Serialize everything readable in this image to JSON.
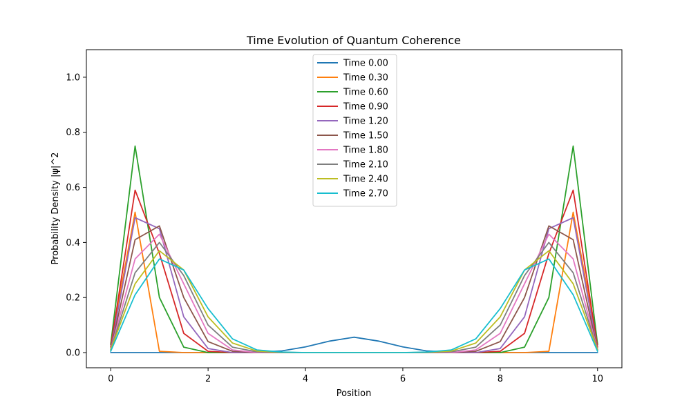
{
  "chart_data": {
    "type": "line",
    "title": "Time Evolution of Quantum Coherence",
    "xlabel": "Position",
    "ylabel": "Probability Density |ψ|^2",
    "xlim": [
      -0.5,
      10.5
    ],
    "ylim": [
      -0.055,
      1.1
    ],
    "xticks": [
      0,
      2,
      4,
      6,
      8,
      10
    ],
    "yticks": [
      0.0,
      0.2,
      0.4,
      0.6,
      0.8,
      1.0
    ],
    "xtick_labels": [
      "0",
      "2",
      "4",
      "6",
      "8",
      "10"
    ],
    "ytick_labels": [
      "0.0",
      "0.2",
      "0.4",
      "0.6",
      "0.8",
      "1.0"
    ],
    "grid": false,
    "legend_position": "top-center",
    "x": [
      0.0,
      0.5,
      1.0,
      1.5,
      2.0,
      2.5,
      3.0,
      3.5,
      4.0,
      4.5,
      5.0,
      5.5,
      6.0,
      6.5,
      7.0,
      7.5,
      8.0,
      8.5,
      9.0,
      9.5,
      10.0
    ],
    "series": [
      {
        "name": "Time 0.00",
        "color": "#1f77b4",
        "values": [
          0.0,
          0.0,
          0.0,
          0.0,
          0.0,
          0.0,
          0.002,
          0.006,
          0.021,
          0.042,
          0.056,
          0.042,
          0.021,
          0.006,
          0.002,
          0.0,
          0.0,
          0.0,
          0.0,
          0.0,
          0.0
        ]
      },
      {
        "name": "Time 0.30",
        "color": "#ff7f0e",
        "values": [
          0.03,
          0.51,
          0.005,
          0.0,
          0.0,
          0.0,
          0.0,
          0.0,
          0.0,
          0.0,
          0.0,
          0.0,
          0.0,
          0.0,
          0.0,
          0.0,
          0.0,
          0.0,
          0.005,
          0.51,
          0.03
        ]
      },
      {
        "name": "Time 0.60",
        "color": "#2ca02c",
        "values": [
          0.03,
          0.75,
          0.2,
          0.02,
          0.0,
          0.0,
          0.0,
          0.0,
          0.0,
          0.0,
          0.0,
          0.0,
          0.0,
          0.0,
          0.0,
          0.0,
          0.0,
          0.02,
          0.2,
          0.75,
          0.03
        ]
      },
      {
        "name": "Time 0.90",
        "color": "#d62728",
        "values": [
          0.02,
          0.59,
          0.36,
          0.07,
          0.005,
          0.0,
          0.0,
          0.0,
          0.0,
          0.0,
          0.0,
          0.0,
          0.0,
          0.0,
          0.0,
          0.0,
          0.005,
          0.07,
          0.36,
          0.59,
          0.02
        ]
      },
      {
        "name": "Time 1.20",
        "color": "#9467bd",
        "values": [
          0.01,
          0.49,
          0.45,
          0.13,
          0.015,
          0.0,
          0.0,
          0.0,
          0.0,
          0.0,
          0.0,
          0.0,
          0.0,
          0.0,
          0.0,
          0.0,
          0.015,
          0.13,
          0.45,
          0.49,
          0.01
        ]
      },
      {
        "name": "Time 1.50",
        "color": "#8c564b",
        "values": [
          0.01,
          0.41,
          0.46,
          0.2,
          0.04,
          0.005,
          0.0,
          0.0,
          0.0,
          0.0,
          0.0,
          0.0,
          0.0,
          0.0,
          0.0,
          0.005,
          0.04,
          0.2,
          0.46,
          0.41,
          0.01
        ]
      },
      {
        "name": "Time 1.80",
        "color": "#e377c2",
        "values": [
          0.01,
          0.34,
          0.43,
          0.25,
          0.07,
          0.01,
          0.0,
          0.0,
          0.0,
          0.0,
          0.0,
          0.0,
          0.0,
          0.0,
          0.0,
          0.01,
          0.07,
          0.25,
          0.43,
          0.34,
          0.01
        ]
      },
      {
        "name": "Time 2.10",
        "color": "#7f7f7f",
        "values": [
          0.01,
          0.29,
          0.4,
          0.28,
          0.1,
          0.02,
          0.003,
          0.0,
          0.0,
          0.0,
          0.0,
          0.0,
          0.0,
          0.0,
          0.003,
          0.02,
          0.1,
          0.28,
          0.4,
          0.29,
          0.01
        ]
      },
      {
        "name": "Time 2.40",
        "color": "#bcbd22",
        "values": [
          0.01,
          0.25,
          0.37,
          0.3,
          0.13,
          0.035,
          0.006,
          0.001,
          0.0,
          0.0,
          0.0,
          0.0,
          0.0,
          0.001,
          0.006,
          0.035,
          0.13,
          0.3,
          0.37,
          0.25,
          0.01
        ]
      },
      {
        "name": "Time 2.70",
        "color": "#17becf",
        "values": [
          0.005,
          0.21,
          0.34,
          0.3,
          0.16,
          0.05,
          0.01,
          0.002,
          0.0,
          0.0,
          0.0,
          0.0,
          0.0,
          0.002,
          0.01,
          0.05,
          0.16,
          0.3,
          0.34,
          0.21,
          0.005
        ]
      }
    ]
  }
}
